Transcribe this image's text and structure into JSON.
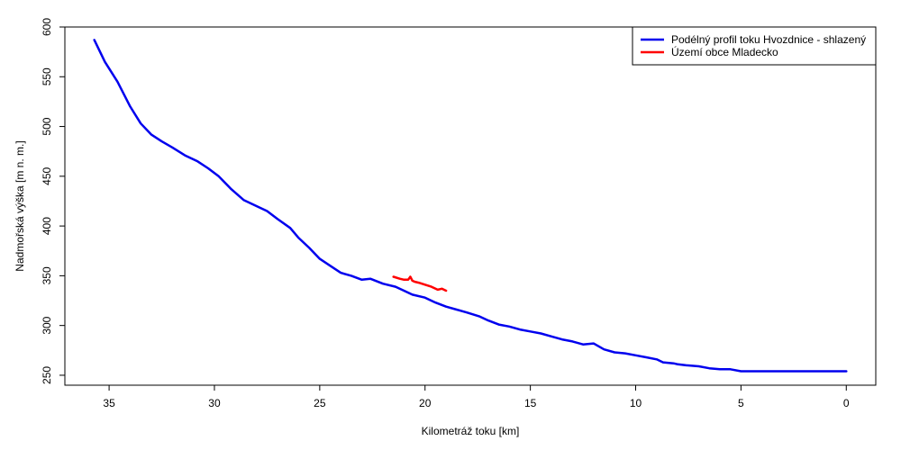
{
  "chart_data": {
    "type": "line",
    "title": "",
    "xlabel": "Kilometráž toku [km]",
    "ylabel": "Nadmořská výška [m n. m.]",
    "xlim": [
      37.1,
      -1.4
    ],
    "ylim": [
      240,
      600
    ],
    "x_reversed": true,
    "grid": false,
    "legend_position": "top-right",
    "x_ticks": [
      35,
      30,
      25,
      20,
      15,
      10,
      5,
      0
    ],
    "y_ticks": [
      250,
      300,
      350,
      400,
      450,
      500,
      550,
      600
    ],
    "series": [
      {
        "name": "Podélný profil toku Hvozdnice - shlazený",
        "color": "#0000ee",
        "x": [
          35.7,
          35.2,
          34.6,
          34.0,
          33.5,
          33.0,
          32.5,
          32.0,
          31.4,
          30.8,
          30.3,
          29.8,
          29.2,
          28.6,
          28.0,
          27.5,
          27.0,
          26.4,
          26.0,
          25.5,
          25.0,
          24.5,
          24.0,
          23.5,
          23.0,
          22.6,
          22.0,
          21.4,
          21.0,
          20.6,
          20.0,
          19.5,
          19.0,
          18.5,
          18.0,
          17.4,
          17.0,
          16.5,
          16.0,
          15.5,
          15.0,
          14.5,
          14.0,
          13.5,
          13.0,
          12.5,
          12.0,
          11.5,
          11.0,
          10.5,
          10.0,
          9.5,
          9.0,
          8.7,
          8.2,
          8.0,
          7.6,
          7.0,
          6.5,
          6.0,
          5.5,
          5.0,
          4.5,
          4.0,
          3.5,
          3.0,
          2.5,
          2.0,
          1.5,
          1.0,
          0.5,
          0.0
        ],
        "y": [
          587,
          565,
          545,
          520,
          503,
          492,
          485,
          479,
          471,
          465,
          458,
          450,
          437,
          426,
          420,
          415,
          407,
          398,
          388,
          378,
          367,
          360,
          353,
          350,
          346,
          347,
          342,
          339,
          335,
          331,
          328,
          323,
          319,
          316,
          313,
          309,
          305,
          301,
          299,
          296,
          294,
          292,
          289,
          286,
          284,
          281,
          282,
          276,
          273,
          272,
          270,
          268,
          266,
          263,
          262,
          261,
          260,
          259,
          257,
          256,
          256,
          254,
          254,
          254,
          254,
          254,
          254,
          254,
          254,
          254,
          254,
          254
        ]
      },
      {
        "name": "Území obce Mladecko",
        "color": "#ff0000",
        "x": [
          21.5,
          21.2,
          21.0,
          20.8,
          20.7,
          20.6,
          20.5,
          20.3,
          20.0,
          19.7,
          19.4,
          19.2,
          19.0
        ],
        "y": [
          349,
          347,
          346,
          346,
          349,
          345,
          344,
          343,
          341,
          339,
          336,
          337,
          335
        ]
      }
    ]
  }
}
